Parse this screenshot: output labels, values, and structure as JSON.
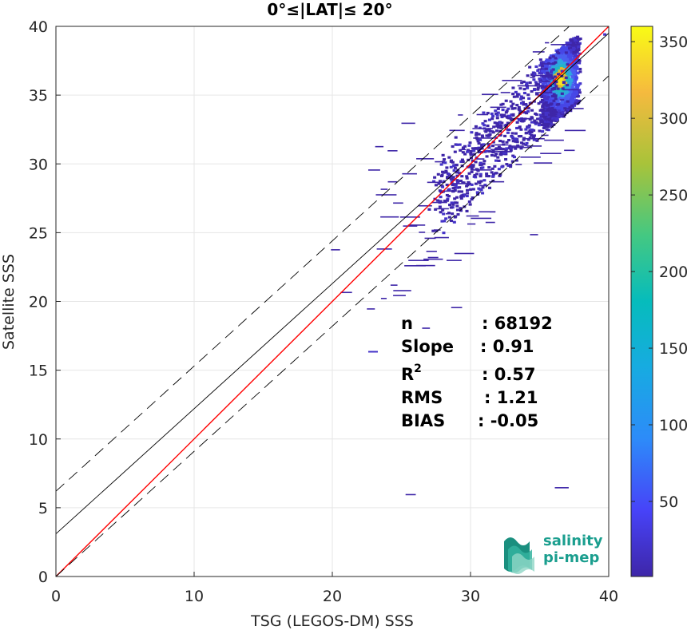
{
  "chart_data": {
    "type": "heatmap",
    "title": "0°≤|LAT|≤ 20°",
    "xlabel": "TSG (LEGOS-DM) SSS",
    "ylabel": "Satellite SSS",
    "xlim": [
      0,
      40
    ],
    "ylim": [
      0,
      40
    ],
    "xticks": [
      "0",
      "10",
      "20",
      "30",
      "40"
    ],
    "yticks": [
      "0",
      "5",
      "10",
      "15",
      "20",
      "25",
      "30",
      "35",
      "40"
    ],
    "grid": true,
    "colorbar": {
      "range": [
        1,
        360
      ],
      "ticks": [
        "50",
        "100",
        "150",
        "200",
        "250",
        "300",
        "350"
      ],
      "tick_values": [
        50,
        100,
        150,
        200,
        250,
        300,
        350
      ],
      "colormap": "parula"
    },
    "reference_lines": [
      {
        "style": "solid",
        "color": "#ff0000",
        "slope": 1.0,
        "intercept": 0.0
      },
      {
        "style": "solid",
        "color": "#000000",
        "slope": 0.91,
        "intercept": 3.1
      },
      {
        "style": "dashed",
        "color": "#000000",
        "slope": 0.91,
        "intercept": 6.2
      },
      {
        "style": "dashed",
        "color": "#000000",
        "slope": 0.91,
        "intercept": 0.0
      }
    ],
    "stats": {
      "labels": [
        "n",
        "Slope",
        "R",
        "RMS",
        "BIAS"
      ],
      "r_superscript": "2",
      "values": [
        ": 68192",
        ": 0.91",
        ": 0.57",
        ": 1.21",
        ": -0.05"
      ]
    }
  },
  "logo": {
    "line1": "salinity",
    "line2": "pi-mep"
  }
}
